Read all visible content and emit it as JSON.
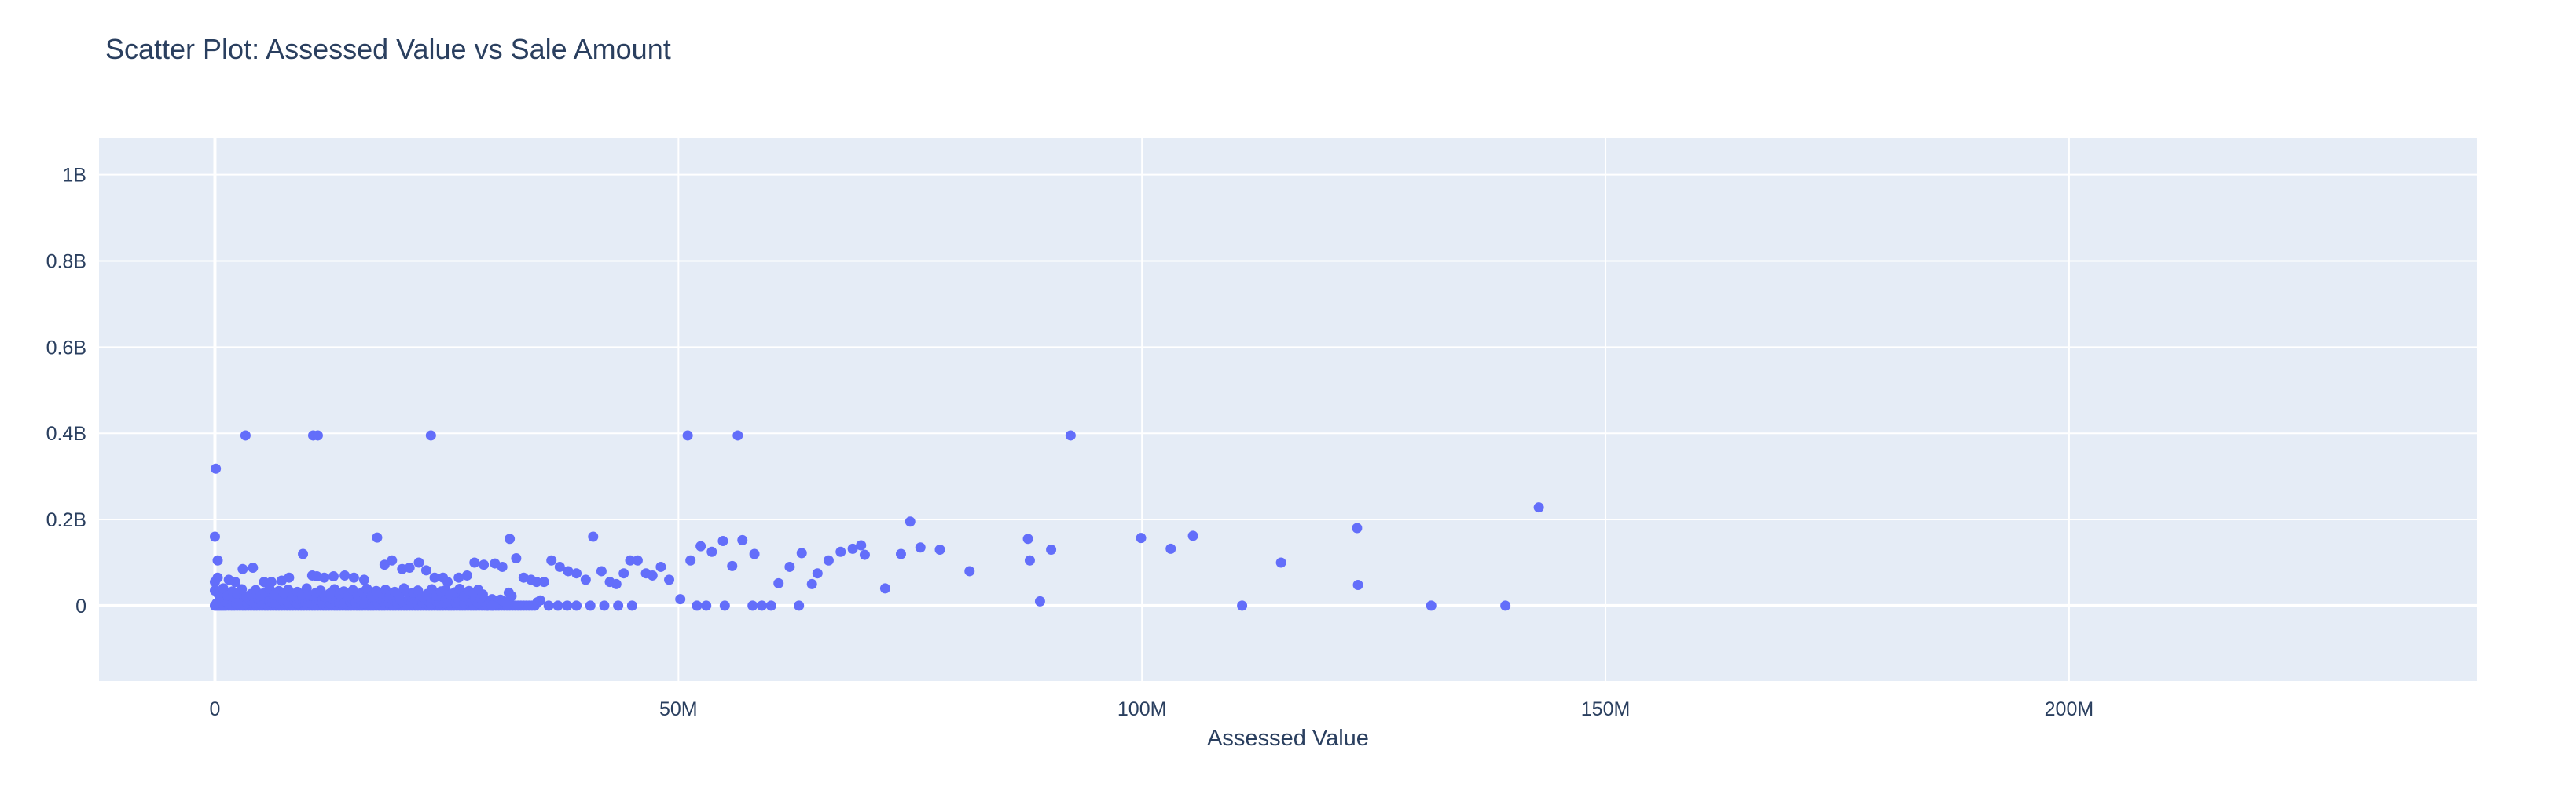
{
  "chart_data": {
    "type": "scatter",
    "title": "Scatter Plot: Assessed Value vs Sale Amount",
    "xlabel": "Assessed Value",
    "ylabel": "",
    "xlim": [
      -12500000,
      244000000
    ],
    "ylim": [
      -175000000,
      1085000000
    ],
    "x_ticks": [
      {
        "value": 0,
        "label": "0"
      },
      {
        "value": 50000000,
        "label": "50M"
      },
      {
        "value": 100000000,
        "label": "100M"
      },
      {
        "value": 150000000,
        "label": "150M"
      },
      {
        "value": 200000000,
        "label": "200M"
      }
    ],
    "y_ticks": [
      {
        "value": 0,
        "label": "0"
      },
      {
        "value": 200000000,
        "label": "0.2B"
      },
      {
        "value": 400000000,
        "label": "0.4B"
      },
      {
        "value": 600000000,
        "label": "0.6B"
      },
      {
        "value": 800000000,
        "label": "0.8B"
      },
      {
        "value": 1000000000,
        "label": "1B"
      }
    ],
    "grid": true,
    "colors": {
      "marker": "#636efa",
      "plot_bg": "#e5ecf6",
      "grid": "#ffffff",
      "text": "#2a3f5f"
    },
    "series": [
      {
        "x": [
          0,
          200000,
          400000,
          600000,
          800000,
          1000000,
          1200000,
          1500000,
          1800000,
          2100000,
          2400000,
          2700000,
          3000000,
          3300000,
          3600000,
          3900000,
          4200000,
          4500000,
          4800000,
          5100000,
          5400000,
          5700000,
          6000000,
          6300000,
          6600000,
          6900000,
          7200000,
          7500000,
          7800000,
          8100000,
          8400000,
          8700000,
          9000000,
          9300000,
          9600000,
          9900000,
          10200000,
          10500000,
          10800000,
          11100000,
          11400000,
          11700000,
          12000000,
          12300000,
          12600000,
          12900000,
          13200000,
          13500000,
          13800000,
          14100000,
          14400000,
          14700000,
          15000000,
          15300000,
          15600000,
          15900000,
          16200000,
          16500000,
          16800000,
          17100000,
          17400000,
          17700000,
          18000000,
          18300000,
          18600000,
          18900000,
          19200000,
          19500000,
          19800000,
          20100000,
          20400000,
          20700000,
          21000000,
          21300000,
          21600000,
          21900000,
          22200000,
          22500000,
          22800000,
          23100000,
          23400000,
          23700000,
          24000000,
          24300000,
          24600000,
          24900000,
          25200000,
          25500000,
          25800000,
          26100000,
          26400000,
          26700000,
          27000000,
          27300000,
          27600000,
          27900000,
          28200000,
          28500000,
          28800000,
          29100000,
          29400000,
          29700000,
          30000000,
          30300000,
          30600000,
          30900000,
          31200000,
          31500000,
          31800000,
          32100000,
          32400000,
          32700000,
          33000000,
          33300000,
          33600000,
          33900000,
          34200000,
          34500000,
          34800000,
          35100000,
          200000,
          500000,
          800000,
          1100000,
          1400000,
          1700000,
          2000000,
          2300000,
          2600000,
          2900000,
          3200000,
          3500000,
          3800000,
          4100000,
          4400000,
          4700000,
          5000000,
          5300000,
          5600000,
          5900000,
          6200000,
          6500000,
          6800000,
          7100000,
          7400000,
          7700000,
          8000000,
          8300000,
          8600000,
          8900000,
          9200000,
          9500000,
          9800000,
          10100000,
          10400000,
          10700000,
          11000000,
          11300000,
          11600000,
          11900000,
          12200000,
          12500000,
          12800000,
          13100000,
          13400000,
          13700000,
          14000000,
          14300000,
          14600000,
          14900000,
          15200000,
          15500000,
          15800000,
          16100000,
          16400000,
          16700000,
          17000000,
          17300000,
          17600000,
          17900000,
          18200000,
          18500000,
          18800000,
          19100000,
          19400000,
          19700000,
          20000000,
          20300000,
          20600000,
          20900000,
          21200000,
          21500000,
          21800000,
          22100000,
          22400000,
          22700000,
          23000000,
          23300000,
          23600000,
          23900000,
          24200000,
          24500000,
          24800000,
          25100000,
          25400000,
          25700000,
          26000000,
          26300000,
          26600000,
          26900000,
          27200000,
          27500000,
          27800000,
          28100000,
          28400000,
          28700000,
          29000000,
          29300000,
          29600000,
          29900000,
          30200000,
          30500000,
          30800000,
          31100000,
          31400000,
          31700000,
          32000000,
          0,
          400000,
          900000,
          1400000,
          1900000,
          2400000,
          2900000,
          3400000,
          3900000,
          4400000,
          4900000,
          5400000,
          5900000,
          6400000,
          6900000,
          7400000,
          7900000,
          8400000,
          8900000,
          9400000,
          9900000,
          10400000,
          10900000,
          11400000,
          11900000,
          12400000,
          12900000,
          13400000,
          13900000,
          14400000,
          14900000,
          15400000,
          15900000,
          16400000,
          16900000,
          17400000,
          17900000,
          18400000,
          18900000,
          19400000,
          19900000,
          20400000,
          20900000,
          21400000,
          21900000,
          22400000,
          22900000,
          23400000,
          23900000,
          24400000,
          24900000,
          25400000,
          25900000,
          26400000,
          26900000,
          27400000,
          27900000,
          28400000,
          28900000,
          29400000,
          29900000,
          36000000,
          37000000,
          38000000,
          39000000,
          40500000,
          42000000,
          43500000,
          45000000,
          58000000,
          59000000,
          60000000,
          55000000,
          53000000,
          52000000,
          63000000,
          65000000,
          75000000,
          0,
          0,
          300000,
          300000,
          1500000,
          2200000,
          3000000,
          4100000,
          5300000,
          6100000,
          7200000,
          8000000,
          9500000,
          10500000,
          11000000,
          11800000,
          12800000,
          14000000,
          15000000,
          16100000,
          17500000,
          18300000,
          19100000,
          20200000,
          21000000,
          22000000,
          22800000,
          23700000,
          24600000,
          25100000,
          26300000,
          27200000,
          28000000,
          29000000,
          30200000,
          31000000,
          31800000,
          32500000,
          33300000,
          34100000,
          34700000,
          35500000,
          36300000,
          37200000,
          38100000,
          39000000,
          40000000,
          40800000,
          41700000,
          42600000,
          43300000,
          44100000,
          44800000,
          45600000,
          46500000,
          47200000,
          48100000,
          49000000,
          50200000,
          51300000,
          52400000,
          53600000,
          54800000,
          55800000,
          56900000,
          58200000,
          60800000,
          62000000,
          63300000,
          64400000,
          66200000,
          67500000,
          68800000,
          69700000,
          70100000,
          72300000,
          74000000,
          76100000,
          78200000,
          81400000,
          87700000,
          87900000,
          89000000,
          90200000,
          99900000,
          103100000,
          105500000,
          110800000,
          115000000,
          123200000,
          123300000,
          131200000,
          139200000,
          142800000,
          3300000,
          10600000,
          11100000,
          23300000,
          51000000,
          56400000,
          92300000
        ],
        "y": [
          0,
          0,
          0,
          0,
          0,
          0,
          0,
          0,
          0,
          0,
          0,
          0,
          0,
          0,
          0,
          0,
          0,
          0,
          0,
          0,
          0,
          0,
          0,
          0,
          0,
          0,
          0,
          0,
          0,
          0,
          0,
          0,
          0,
          0,
          0,
          0,
          0,
          0,
          0,
          0,
          0,
          0,
          0,
          0,
          0,
          0,
          0,
          0,
          0,
          0,
          0,
          0,
          0,
          0,
          0,
          0,
          0,
          0,
          0,
          0,
          0,
          0,
          0,
          0,
          0,
          0,
          0,
          0,
          0,
          0,
          0,
          0,
          0,
          0,
          0,
          0,
          0,
          0,
          0,
          0,
          0,
          0,
          0,
          0,
          0,
          0,
          0,
          0,
          0,
          0,
          0,
          0,
          0,
          0,
          0,
          0,
          0,
          0,
          0,
          0,
          0,
          0,
          0,
          0,
          0,
          0,
          0,
          0,
          0,
          0,
          0,
          0,
          0,
          0,
          0,
          0,
          0,
          0,
          8000000,
          12000000,
          6000000,
          15000000,
          9000000,
          11000000,
          7000000,
          14000000,
          10000000,
          5000000,
          13000000,
          8000000,
          16000000,
          6000000,
          12000000,
          9000000,
          7000000,
          15000000,
          11000000,
          5000000,
          14000000,
          10000000,
          8000000,
          13000000,
          6000000,
          16000000,
          9000000,
          12000000,
          7000000,
          15000000,
          11000000,
          5000000,
          14000000,
          10000000,
          8000000,
          13000000,
          6000000,
          16000000,
          9000000,
          12000000,
          7000000,
          15000000,
          11000000,
          5000000,
          14000000,
          10000000,
          8000000,
          13000000,
          6000000,
          16000000,
          9000000,
          12000000,
          7000000,
          15000000,
          11000000,
          5000000,
          14000000,
          10000000,
          8000000,
          13000000,
          6000000,
          16000000,
          9000000,
          12000000,
          7000000,
          15000000,
          11000000,
          5000000,
          14000000,
          10000000,
          8000000,
          13000000,
          6000000,
          16000000,
          9000000,
          12000000,
          7000000,
          15000000,
          11000000,
          5000000,
          14000000,
          10000000,
          8000000,
          13000000,
          6000000,
          16000000,
          9000000,
          12000000,
          7000000,
          15000000,
          11000000,
          5000000,
          14000000,
          10000000,
          8000000,
          13000000,
          6000000,
          16000000,
          9000000,
          12000000,
          7000000,
          15000000,
          11000000,
          5000000,
          14000000,
          10000000,
          8000000,
          30000000,
          22000000,
          35000000,
          26000000,
          40000000,
          24000000,
          33000000,
          28000000,
          38000000,
          21000000,
          27000000,
          36000000,
          23000000,
          31000000,
          39000000,
          25000000,
          34000000,
          29000000,
          37000000,
          22000000,
          32000000,
          26000000,
          40000000,
          24000000,
          30000000,
          35000000,
          21000000,
          28000000,
          38000000,
          27000000,
          33000000,
          23000000,
          36000000,
          25000000,
          31000000,
          39000000,
          22000000,
          34000000,
          29000000,
          37000000,
          24000000,
          32000000,
          26000000,
          40000000,
          28000000,
          30000000,
          35000000,
          21000000,
          27000000,
          38000000,
          23000000,
          33000000,
          36000000,
          25000000,
          31000000,
          39000000,
          22000000,
          34000000,
          29000000,
          37000000,
          26000000,
          0,
          0,
          0,
          0,
          0,
          0,
          0,
          0,
          0,
          0,
          0,
          0,
          0,
          0,
          0,
          0,
          0,
          75000000,
          195000000,
          160000000,
          55000000,
          105000000,
          65000000,
          60000000,
          55000000,
          85000000,
          88000000,
          55000000,
          55000000,
          58000000,
          65000000,
          120000000,
          70000000,
          68000000,
          65000000,
          68000000,
          70000000,
          65000000,
          60000000,
          158000000,
          95000000,
          105000000,
          85000000,
          88000000,
          100000000,
          82000000,
          65000000,
          65000000,
          55000000,
          65000000,
          70000000,
          100000000,
          95000000,
          98000000,
          90000000,
          155000000,
          110000000,
          65000000,
          60000000,
          55000000,
          55000000,
          105000000,
          90000000,
          80000000,
          75000000,
          60000000,
          160000000,
          80000000,
          55000000,
          50000000,
          75000000,
          105000000,
          105000000,
          75000000,
          70000000,
          90000000,
          60000000,
          15000000,
          105000000,
          138000000,
          125000000,
          150000000,
          92000000,
          152000000,
          120000000,
          52000000,
          90000000,
          122000000,
          50000000,
          105000000,
          125000000,
          132000000,
          140000000,
          118000000,
          40000000,
          120000000,
          135000000,
          130000000,
          80000000,
          155000000,
          105000000,
          10000000,
          130000000,
          157000000,
          132000000,
          162000000,
          0,
          100000000,
          180000000,
          48000000,
          0,
          0,
          228000000,
          395000000,
          395000000,
          395000000,
          395000000,
          395000000,
          395000000,
          395000000
        ]
      },
      {
        "x": [
          100000
        ],
        "y": [
          318000000
        ]
      }
    ]
  }
}
